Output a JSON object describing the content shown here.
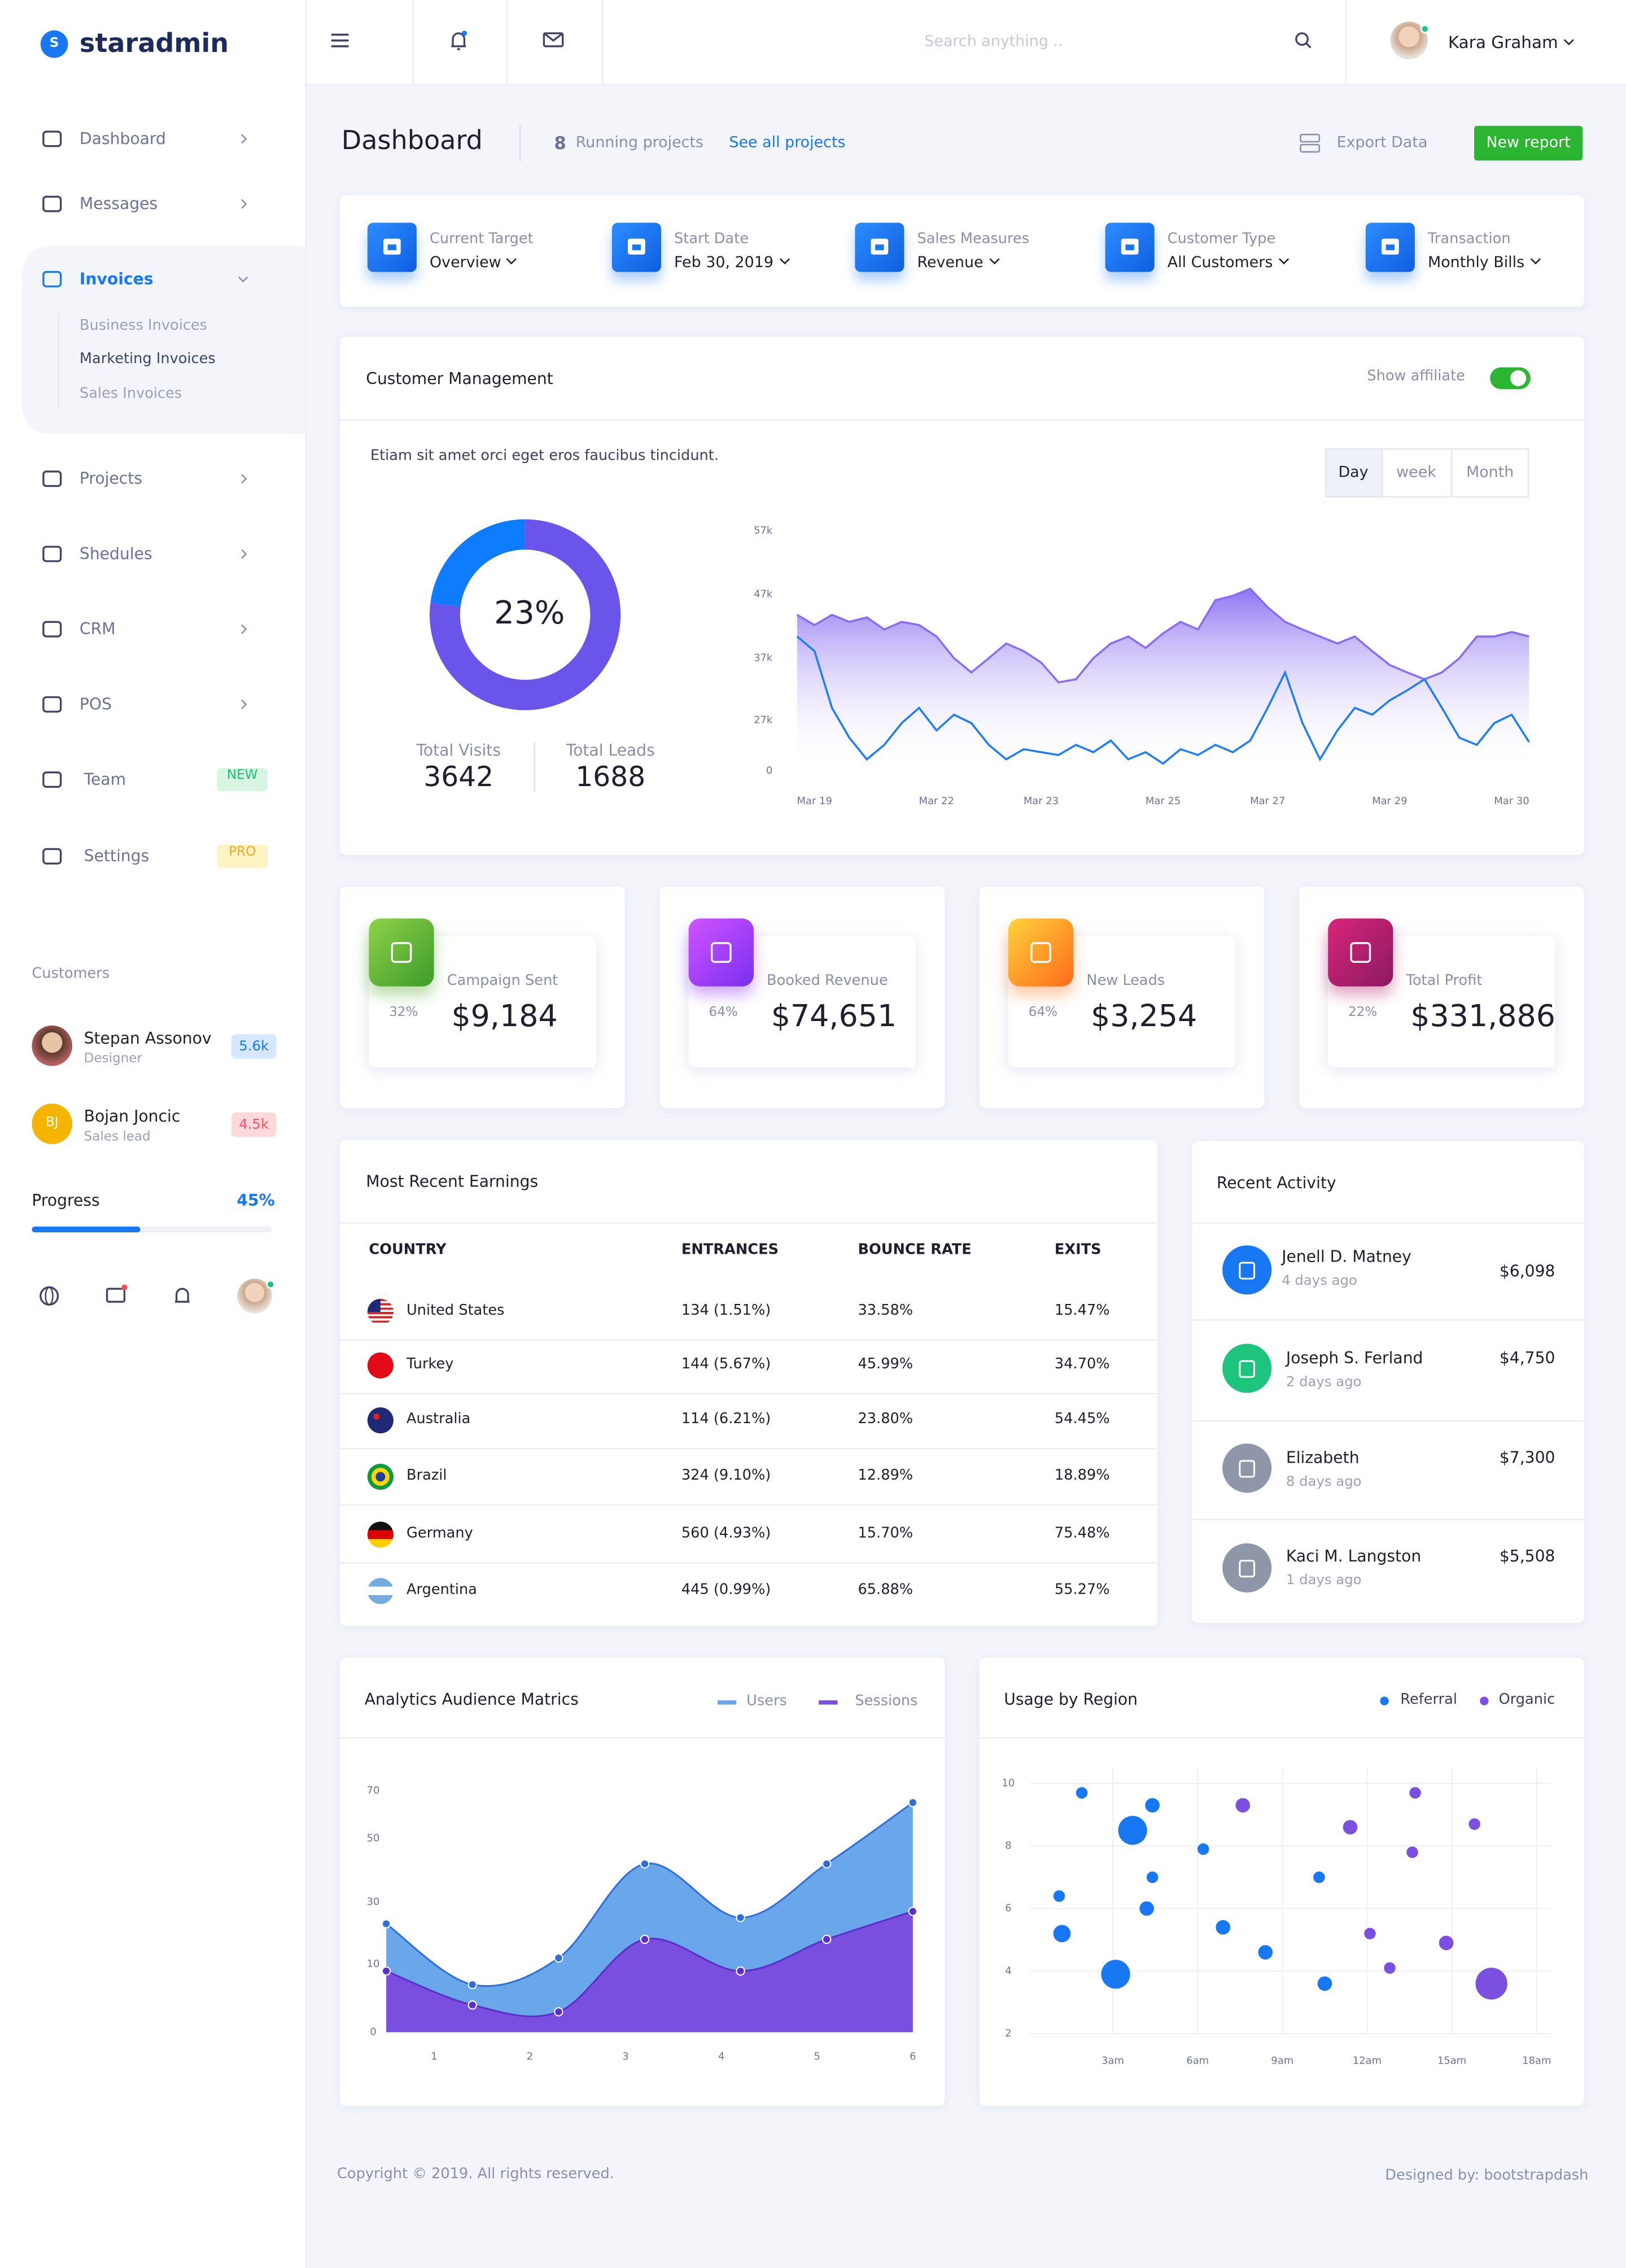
{
  "brand": {
    "logo": "S",
    "name": "staradmin"
  },
  "header": {
    "search": "Search anything ..",
    "user": "Kara Graham"
  },
  "sidebar": {
    "menu": [
      {
        "label": "Dashboard"
      },
      {
        "label": "Messages"
      },
      {
        "label": "Invoices",
        "submenu": [
          "Business Invoices",
          "Marketing Invoices",
          "Sales Invoices"
        ]
      },
      {
        "label": "Projects"
      },
      {
        "label": "Shedules"
      },
      {
        "label": "CRM"
      },
      {
        "label": "POS"
      },
      {
        "label": "Team",
        "badge": "NEW"
      },
      {
        "label": "Settings",
        "badge": "PRO"
      }
    ],
    "customers_title": "Customers",
    "customers": [
      {
        "name": "Stepan Assonov",
        "role": "Designer",
        "badge": "5.6k"
      },
      {
        "initials": "BJ",
        "name": "Bojan Joncic",
        "role": "Sales lead",
        "badge": "4.5k"
      }
    ],
    "progress": {
      "label": "Progress",
      "value": 45,
      "value_label": "45%"
    }
  },
  "toolbar": {
    "title": "Dashboard",
    "running_count": "8",
    "running_label": "Running projects",
    "link": "See all projects",
    "export": "Export Data",
    "button": "New report"
  },
  "filters": [
    {
      "label": "Current Target",
      "value": "Overview"
    },
    {
      "label": "Start Date",
      "value": "Feb 30, 2019"
    },
    {
      "label": "Sales Measures",
      "value": "Revenue"
    },
    {
      "label": "Customer Type",
      "value": "All Customers"
    },
    {
      "label": "Transaction",
      "value": "Monthly Bills"
    }
  ],
  "customer_management": {
    "title": "Customer Management",
    "toggle_label": "Show affiliate",
    "description": "Etiam sit amet orci eget eros faucibus tincidunt.",
    "tabs": [
      "Day",
      "week",
      "Month"
    ],
    "totals": [
      {
        "label": "Total Visits",
        "value": "3642"
      },
      {
        "label": "Total Leads",
        "value": "1688"
      }
    ]
  },
  "stats": [
    {
      "label": "Campaign Sent",
      "percent": "32%",
      "value": "$9,184"
    },
    {
      "label": "Booked Revenue",
      "percent": "64%",
      "value": "$74,651"
    },
    {
      "label": "New Leads",
      "percent": "64%",
      "value": "$3,254"
    },
    {
      "label": "Total Profit",
      "percent": "22%",
      "value": "$331,886"
    }
  ],
  "earnings": {
    "title": "Most Recent Earnings",
    "columns": [
      "COUNTRY",
      "ENTRANCES",
      "BOUNCE RATE",
      "EXITS"
    ],
    "rows": [
      [
        "United States",
        "134 (1.51%)",
        "33.58%",
        "15.47%"
      ],
      [
        "Turkey",
        "144 (5.67%)",
        "45.99%",
        "34.70%"
      ],
      [
        "Australia",
        "114 (6.21%)",
        "23.80%",
        "54.45%"
      ],
      [
        "Brazil",
        "324 (9.10%)",
        "12.89%",
        "18.89%"
      ],
      [
        "Germany",
        "560 (4.93%)",
        "15.70%",
        "75.48%"
      ],
      [
        "Argentina",
        "445 (0.99%)",
        "65.88%",
        "55.27%"
      ]
    ]
  },
  "activity": {
    "title": "Recent Activity",
    "items": [
      {
        "name": "Jenell D. Matney",
        "time": "4 days ago",
        "amount": "$6,098"
      },
      {
        "name": "Joseph S. Ferland",
        "time": "2 days ago",
        "amount": "$4,750"
      },
      {
        "name": "Elizabeth",
        "time": "8 days ago",
        "amount": "$7,300"
      },
      {
        "name": "Kaci M. Langston",
        "time": "1 days ago",
        "amount": "$5,508"
      }
    ]
  },
  "footer": {
    "copyright": "Copyright © 2019. All rights reserved.",
    "credit": "Designed by: bootstrapdash"
  },
  "chart_data": [
    {
      "type": "donut",
      "values": [
        23,
        77
      ],
      "value_labels": [
        "23%",
        null
      ],
      "colors": [
        "#0d7cff",
        "#6a55ea"
      ]
    },
    {
      "type": "line",
      "categories": [
        null,
        "Mar 19",
        null,
        null,
        null,
        null,
        null,
        null,
        "Mar 22",
        null,
        null,
        null,
        null,
        null,
        "Mar 23",
        null,
        null,
        null,
        null,
        null,
        null,
        "Mar 25",
        null,
        null,
        null,
        null,
        null,
        "Mar 27",
        null,
        null,
        null,
        null,
        null,
        null,
        "Mar 29",
        null,
        null,
        null,
        null,
        null,
        null,
        "Mar 30",
        null
      ],
      "ylim": [
        0,
        57000
      ],
      "yticks": [
        0,
        {
          "value": 27000,
          "label": "27k"
        },
        {
          "value": 37000,
          "label": "37k"
        },
        {
          "value": 47000,
          "label": "47k"
        },
        {
          "value": 57000,
          "label": "57k"
        }
      ],
      "series": [
        {
          "color": "#8a6cf0",
          "values": [
            43800,
            42200,
            43800,
            42700,
            43400,
            41500,
            42700,
            42200,
            40400,
            37000,
            34700,
            37000,
            39300,
            38100,
            36300,
            33100,
            33600,
            37000,
            39300,
            40400,
            38600,
            40900,
            42700,
            41500,
            46100,
            46800,
            47900,
            45000,
            42700,
            41500,
            40400,
            39300,
            40400,
            38100,
            35900,
            34700,
            33600,
            34700,
            37000,
            40400,
            40400,
            41100,
            40400
          ]
        },
        {
          "color": "#1d7ff2",
          "values": [
            40400,
            38100,
            29000,
            17700,
            6200,
            13900,
            25500,
            29000,
            21600,
            27900,
            25500,
            13900,
            6200,
            11600,
            10000,
            8500,
            13900,
            10000,
            16200,
            6200,
            10000,
            3900,
            11600,
            8500,
            13900,
            10000,
            16200,
            29000,
            34700,
            25500,
            6200,
            21600,
            29000,
            27900,
            30200,
            31800,
            33600,
            29000,
            17700,
            13900,
            25500,
            27900,
            15400
          ]
        }
      ]
    },
    {
      "type": "area",
      "title": "Analytics Audience Matrics",
      "x": [
        0.5,
        1.4,
        2.3,
        3.2,
        4.2,
        5.1,
        6
      ],
      "xlim": [
        0.5,
        6
      ],
      "xticks": [
        1,
        2,
        3,
        4,
        5,
        6
      ],
      "ylim": [
        0,
        70
      ],
      "yticks": [
        0,
        10,
        30,
        50,
        70
      ],
      "series": [
        {
          "name": "Users",
          "color": "#6aa6ea",
          "values": [
            23,
            7,
            12,
            42,
            25,
            42,
            65
          ]
        },
        {
          "name": "Sessions",
          "color": "#7a4fe0",
          "values": [
            9,
            4,
            3,
            18,
            9,
            18,
            27
          ]
        }
      ]
    },
    {
      "type": "scatter",
      "title": "Usage by Region",
      "xlim": [
        -0.7,
        18.5
      ],
      "xticks": [
        {
          "value": 3,
          "label": "3am"
        },
        {
          "value": 6,
          "label": "6am"
        },
        {
          "value": 9,
          "label": "9am"
        },
        {
          "value": 12,
          "label": "12am"
        },
        {
          "value": 15,
          "label": "15am"
        },
        {
          "value": 18,
          "label": "18am"
        }
      ],
      "ylim": [
        2,
        10
      ],
      "yticks": [
        2,
        4,
        6,
        8,
        10
      ],
      "grid": true,
      "series": [
        {
          "name": "Referral",
          "color": "#1877f2",
          "x": [
            1.9,
            4.4,
            3.7,
            6.2,
            4.4,
            1.1,
            4.2,
            1.2,
            6.9,
            3.1,
            8.4,
            10.3,
            10.5
          ],
          "values": [
            9.7,
            9.3,
            8.5,
            7.9,
            7.0,
            6.4,
            6.0,
            5.2,
            5.4,
            3.9,
            4.6,
            7.0,
            3.6
          ],
          "sizes": [
            4,
            5,
            10,
            4,
            4,
            4,
            5,
            6,
            5,
            10,
            5,
            4,
            5
          ]
        },
        {
          "name": "Organic",
          "color": "#7b4fe0",
          "x": [
            7.6,
            13.7,
            11.4,
            13.6,
            15.8,
            12.1,
            14.8,
            12.8,
            16.4
          ],
          "values": [
            9.3,
            9.7,
            8.6,
            7.8,
            8.7,
            5.2,
            4.9,
            4.1,
            3.6
          ],
          "sizes": [
            5,
            4,
            5,
            4,
            4,
            4,
            5,
            4,
            11
          ]
        }
      ]
    }
  ]
}
